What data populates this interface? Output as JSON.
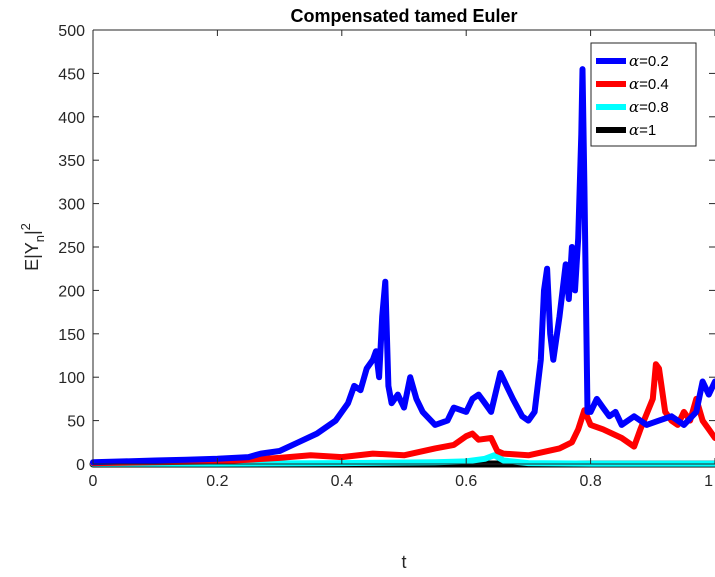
{
  "chart_data": {
    "type": "line",
    "title": "Compensated tamed Euler",
    "xlabel": "t",
    "ylabel_main": "E|Y",
    "ylabel_sub": "n",
    "ylabel_tail": "|",
    "ylabel_sup": "2",
    "xlim": [
      0,
      1
    ],
    "ylim": [
      0,
      500
    ],
    "xticks": [
      0,
      0.2,
      0.4,
      0.6,
      0.8,
      1
    ],
    "xtick_labels": [
      "0",
      "0.2",
      "0.4",
      "0.6",
      "0.8",
      "1"
    ],
    "yticks": [
      0,
      50,
      100,
      150,
      200,
      250,
      300,
      350,
      400,
      450,
      500
    ],
    "ytick_labels": [
      "0",
      "50",
      "100",
      "150",
      "200",
      "250",
      "300",
      "350",
      "400",
      "450",
      "500"
    ],
    "grid": false,
    "legend_position": "top-right",
    "series": [
      {
        "name": "α=0.2",
        "legend_symbol": "α",
        "legend_value": "=0.2",
        "color": "#0000ff",
        "x": [
          0,
          0.05,
          0.1,
          0.15,
          0.2,
          0.25,
          0.27,
          0.3,
          0.33,
          0.36,
          0.39,
          0.41,
          0.42,
          0.43,
          0.44,
          0.45,
          0.455,
          0.46,
          0.465,
          0.47,
          0.475,
          0.48,
          0.49,
          0.5,
          0.51,
          0.52,
          0.53,
          0.55,
          0.57,
          0.58,
          0.6,
          0.61,
          0.62,
          0.63,
          0.64,
          0.655,
          0.665,
          0.675,
          0.69,
          0.7,
          0.71,
          0.72,
          0.725,
          0.73,
          0.735,
          0.74,
          0.75,
          0.755,
          0.76,
          0.765,
          0.77,
          0.775,
          0.78,
          0.785,
          0.787,
          0.79,
          0.795,
          0.8,
          0.81,
          0.82,
          0.83,
          0.84,
          0.85,
          0.87,
          0.89,
          0.91,
          0.93,
          0.95,
          0.97,
          0.98,
          0.99,
          1.0
        ],
        "y": [
          2,
          3,
          4,
          5,
          6,
          8,
          12,
          15,
          25,
          35,
          50,
          70,
          90,
          85,
          110,
          120,
          130,
          100,
          170,
          210,
          90,
          70,
          80,
          65,
          100,
          75,
          60,
          45,
          50,
          65,
          60,
          75,
          80,
          70,
          60,
          105,
          90,
          75,
          55,
          50,
          60,
          120,
          200,
          225,
          150,
          120,
          170,
          200,
          230,
          190,
          250,
          200,
          260,
          380,
          455,
          320,
          60,
          60,
          75,
          65,
          55,
          60,
          45,
          55,
          45,
          50,
          55,
          45,
          60,
          95,
          80,
          95
        ]
      },
      {
        "name": "α=0.4",
        "legend_symbol": "α",
        "legend_value": "=0.4",
        "color": "#ff0000",
        "x": [
          0,
          0.1,
          0.2,
          0.25,
          0.3,
          0.35,
          0.4,
          0.45,
          0.5,
          0.55,
          0.58,
          0.6,
          0.61,
          0.62,
          0.64,
          0.65,
          0.66,
          0.7,
          0.75,
          0.77,
          0.78,
          0.79,
          0.8,
          0.82,
          0.85,
          0.87,
          0.88,
          0.9,
          0.905,
          0.91,
          0.92,
          0.93,
          0.94,
          0.95,
          0.96,
          0.97,
          0.98,
          0.99,
          1.0
        ],
        "y": [
          1,
          2,
          3,
          5,
          7,
          10,
          8,
          12,
          10,
          18,
          22,
          32,
          35,
          28,
          30,
          15,
          12,
          10,
          18,
          25,
          40,
          62,
          45,
          40,
          30,
          20,
          40,
          75,
          115,
          110,
          60,
          50,
          45,
          60,
          50,
          75,
          50,
          40,
          30
        ]
      },
      {
        "name": "α=0.8",
        "legend_symbol": "α",
        "legend_value": "=0.8",
        "color": "#00ffff",
        "x": [
          0,
          0.2,
          0.4,
          0.55,
          0.6,
          0.63,
          0.645,
          0.66,
          0.7,
          0.8,
          0.9,
          1.0
        ],
        "y": [
          0.5,
          0.5,
          1,
          2,
          3,
          6,
          10,
          4,
          1,
          0.5,
          0.5,
          0.5
        ]
      },
      {
        "name": "α=1",
        "legend_symbol": "α",
        "legend_value": "=1",
        "color": "#000000",
        "x": [
          0,
          0.25,
          0.5,
          0.75,
          1.0
        ],
        "y": [
          0,
          0,
          0,
          0,
          0
        ]
      }
    ]
  }
}
